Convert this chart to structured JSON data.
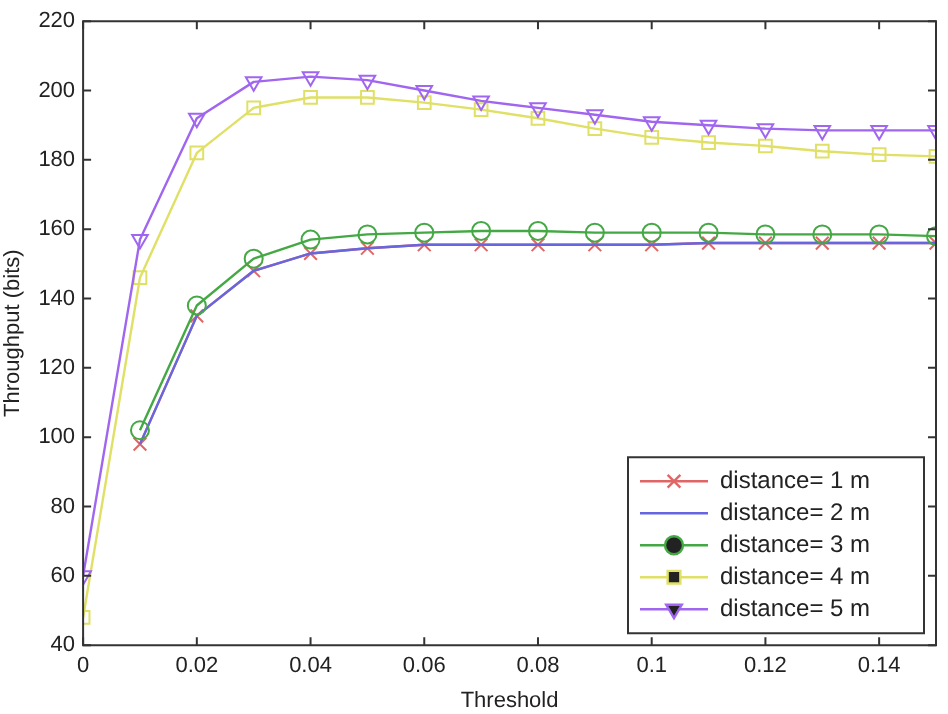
{
  "chart_data": {
    "type": "line",
    "xlabel": "Threshold",
    "ylabel": "Throughput (bits)",
    "x": [
      0,
      0.01,
      0.02,
      0.03,
      0.04,
      0.05,
      0.06,
      0.07,
      0.08,
      0.09,
      0.1,
      0.11,
      0.12,
      0.13,
      0.14,
      0.15
    ],
    "xlim": [
      0,
      0.15
    ],
    "xticks": [
      0,
      0.02,
      0.04,
      0.06,
      0.08,
      0.1,
      0.12,
      0.14
    ],
    "ylim": [
      40,
      220
    ],
    "yticks": [
      40,
      60,
      80,
      100,
      120,
      140,
      160,
      180,
      200,
      220
    ],
    "grid": false,
    "legend": "bottom right",
    "series": [
      {
        "name": "distance= 1 m",
        "color": "#e06666",
        "marker": "cross",
        "values": [
          null,
          98,
          135,
          148,
          153,
          154.5,
          155.5,
          155.5,
          155.5,
          155.5,
          155.5,
          156,
          156,
          156,
          156,
          156
        ]
      },
      {
        "name": "distance= 2 m",
        "color": "#6666e0",
        "marker": "none",
        "values": [
          null,
          98,
          135,
          148,
          153,
          154.5,
          155.5,
          155.5,
          155.5,
          155.5,
          155.5,
          156,
          156,
          156,
          156,
          156
        ]
      },
      {
        "name": "distance= 3 m",
        "color": "#44a844",
        "marker": "circle",
        "values": [
          null,
          102,
          138,
          151.5,
          157,
          158.5,
          159,
          159.5,
          159.5,
          159,
          159,
          159,
          158.5,
          158.5,
          158.5,
          158
        ]
      },
      {
        "name": "distance= 4 m",
        "color": "#e0e066",
        "marker": "square",
        "values": [
          48,
          146,
          182,
          195,
          198,
          198,
          196.5,
          194.5,
          192,
          189,
          186.5,
          185,
          184,
          182.5,
          181.5,
          181
        ]
      },
      {
        "name": "distance= 5 m",
        "color": "#a066f0",
        "marker": "triangle",
        "values": [
          60,
          157,
          192,
          202.5,
          204,
          203,
          200,
          197,
          195,
          193,
          191,
          190,
          189,
          188.5,
          188.5,
          188.5
        ]
      }
    ]
  }
}
